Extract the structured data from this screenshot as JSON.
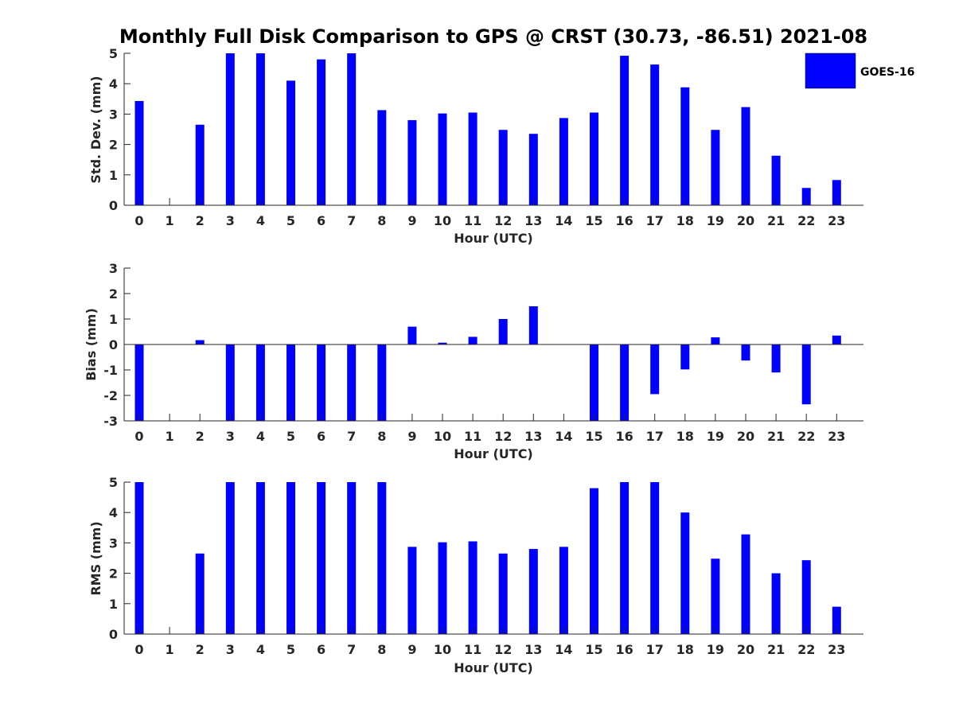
{
  "figure": {
    "title": "Monthly Full Disk Comparison to GPS @ CRST (30.73, -86.51) 2021-08",
    "bar_color": "#0000ff",
    "legend": {
      "label": "GOES-16",
      "placement": "top-right"
    }
  },
  "chart_data": [
    {
      "type": "bar",
      "name": "std_dev",
      "xlabel": "Hour (UTC)",
      "ylabel": "Std. Dev. (mm)",
      "ylim": [
        0,
        5
      ],
      "yticks": [
        0,
        1,
        2,
        3,
        4,
        5
      ],
      "categories": [
        "0",
        "1",
        "2",
        "3",
        "4",
        "5",
        "6",
        "7",
        "8",
        "9",
        "10",
        "11",
        "12",
        "13",
        "14",
        "15",
        "16",
        "17",
        "18",
        "19",
        "20",
        "21",
        "22",
        "23"
      ],
      "series": [
        {
          "name": "GOES-16",
          "values": [
            3.43,
            null,
            2.65,
            5.0,
            5.0,
            4.1,
            4.8,
            5.0,
            3.13,
            2.8,
            3.02,
            3.05,
            2.48,
            2.35,
            2.87,
            3.05,
            4.92,
            4.63,
            3.88,
            2.48,
            3.23,
            1.63,
            0.57,
            0.83
          ]
        }
      ]
    },
    {
      "type": "bar",
      "name": "bias",
      "xlabel": "Hour (UTC)",
      "ylabel": "Bias (mm)",
      "ylim": [
        -3,
        3
      ],
      "yticks": [
        -3,
        -2,
        -1,
        0,
        1,
        2,
        3
      ],
      "categories": [
        "0",
        "1",
        "2",
        "3",
        "4",
        "5",
        "6",
        "7",
        "8",
        "9",
        "10",
        "11",
        "12",
        "13",
        "14",
        "15",
        "16",
        "17",
        "18",
        "19",
        "20",
        "21",
        "22",
        "23"
      ],
      "series": [
        {
          "name": "GOES-16",
          "values": [
            -3.0,
            null,
            0.17,
            -3.0,
            -3.0,
            -3.0,
            -3.0,
            -3.0,
            -3.0,
            0.7,
            0.07,
            0.3,
            1.0,
            1.5,
            0.0,
            -3.0,
            -3.0,
            -1.95,
            -0.98,
            0.28,
            -0.63,
            -1.1,
            -2.35,
            0.35
          ]
        }
      ]
    },
    {
      "type": "bar",
      "name": "rms",
      "xlabel": "Hour (UTC)",
      "ylabel": "RMS (mm)",
      "ylim": [
        0,
        5
      ],
      "yticks": [
        0,
        1,
        2,
        3,
        4,
        5
      ],
      "categories": [
        "0",
        "1",
        "2",
        "3",
        "4",
        "5",
        "6",
        "7",
        "8",
        "9",
        "10",
        "11",
        "12",
        "13",
        "14",
        "15",
        "16",
        "17",
        "18",
        "19",
        "20",
        "21",
        "22",
        "23"
      ],
      "series": [
        {
          "name": "GOES-16",
          "values": [
            5.0,
            null,
            2.65,
            5.0,
            5.0,
            5.0,
            5.0,
            5.0,
            5.0,
            2.87,
            3.02,
            3.05,
            2.65,
            2.8,
            2.87,
            4.8,
            5.0,
            5.0,
            4.0,
            2.48,
            3.28,
            2.0,
            2.43,
            0.9
          ]
        }
      ]
    }
  ]
}
